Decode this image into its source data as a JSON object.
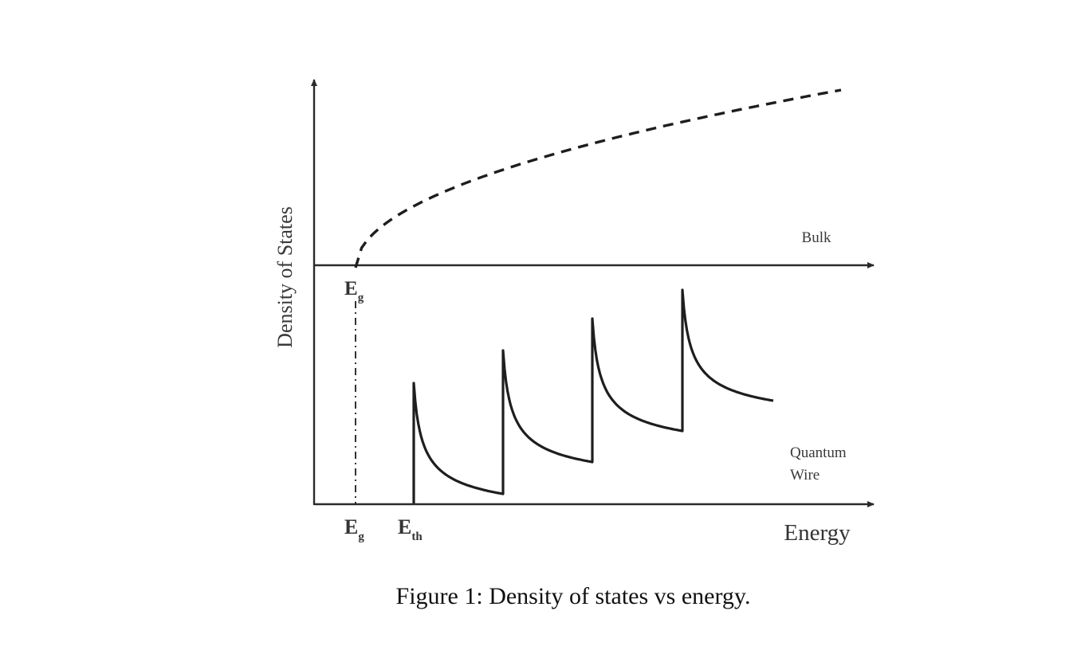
{
  "diagram": {
    "y_axis_label": "Density of States",
    "x_axis_label": "Energy",
    "bulk_label": "Bulk",
    "wire_label_line1": "Quantum",
    "wire_label_line2": "Wire",
    "upper_eg_main": "E",
    "upper_eg_sub": "g",
    "lower_eg_main": "E",
    "lower_eg_sub": "g",
    "eth_main": "E",
    "eth_sub": "th",
    "subband_count": 4
  },
  "caption": "Figure 1: Density of states vs energy."
}
